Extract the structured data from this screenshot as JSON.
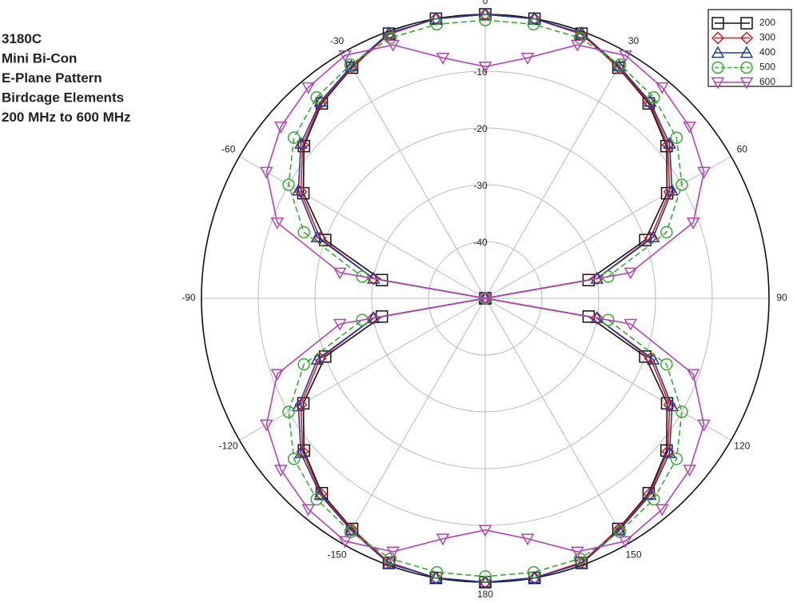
{
  "chart_data": {
    "type": "polar",
    "title_lines": [
      "3180C",
      "Mini Bi-Con",
      "E-Plane Pattern",
      "Birdcage Elements",
      "200 MHz to 600 MHz"
    ],
    "x": [
      0,
      10,
      20,
      30,
      40,
      50,
      60,
      70,
      80,
      90,
      100,
      110,
      120,
      130,
      140,
      150,
      160,
      170,
      180,
      190,
      200,
      210,
      220,
      230,
      240,
      250,
      260,
      270,
      280,
      290,
      300,
      310,
      320,
      330,
      340,
      350
    ],
    "rlim": [
      -50,
      0
    ],
    "rticks": [
      -10,
      -20,
      -30,
      -40
    ],
    "angle_ticks": [
      0,
      30,
      60,
      90,
      120,
      150,
      180,
      -150,
      -120,
      -90,
      -60,
      -30
    ],
    "series": [
      {
        "name": "200",
        "color": "#111111",
        "marker": "square",
        "dash": false,
        "values": [
          0,
          0,
          -0.4,
          -3.1,
          -5.2,
          -8.3,
          -13,
          -20,
          -31.5,
          -50,
          -31.5,
          -20,
          -13,
          -8.3,
          -5.2,
          -3.1,
          -0.4,
          0,
          0,
          0,
          -0.4,
          -3.1,
          -5.2,
          -8.3,
          -13,
          -20,
          -31.5,
          -50,
          -31.5,
          -20,
          -13,
          -8.3,
          -5.2,
          -3.1,
          -0.4,
          0
        ]
      },
      {
        "name": "300",
        "color": "#e8141b",
        "marker": "diamond",
        "dash": false,
        "values": [
          0,
          0,
          -0.5,
          -3,
          -5,
          -8,
          -12.5,
          -19,
          -30,
          -50,
          -30,
          -19,
          -12.5,
          -8,
          -5,
          -3,
          -0.5,
          0,
          0,
          0,
          -0.5,
          -3,
          -5,
          -8,
          -12.5,
          -19,
          -30,
          -50,
          -30,
          -19,
          -12.5,
          -8,
          -5,
          -3,
          -0.5,
          0
        ]
      },
      {
        "name": "400",
        "color": "#1f3c9c",
        "marker": "triangle",
        "dash": false,
        "values": [
          0,
          0,
          -0.3,
          -2.8,
          -4.8,
          -7.6,
          -12,
          -18.5,
          -30,
          -50,
          -30,
          -18.5,
          -12,
          -7.6,
          -4.8,
          -2.8,
          -0.3,
          0,
          0,
          0,
          -0.3,
          -2.8,
          -4.8,
          -7.6,
          -12,
          -18.5,
          -30,
          -50,
          -30,
          -18.5,
          -12,
          -7.6,
          -4.8,
          -2.8,
          -0.3,
          0
        ]
      },
      {
        "name": "500",
        "color": "#3aa935",
        "marker": "circle",
        "dash": true,
        "values": [
          -1,
          -1,
          -1.2,
          -2.5,
          -3.8,
          -6,
          -10,
          -16,
          -28,
          -50,
          -28,
          -16,
          -10,
          -6,
          -3.8,
          -2.5,
          -1.2,
          -1,
          -1,
          -1,
          -1.2,
          -2.5,
          -3.8,
          -6,
          -10,
          -16,
          -28,
          -50,
          -28,
          -16,
          -10,
          -6,
          -3.8,
          -2.5,
          -1.2,
          -1
        ]
      },
      {
        "name": "600",
        "color": "#b444b4",
        "marker": "triangle-down",
        "dash": false,
        "values": [
          -9.2,
          -7,
          -2.5,
          -0.6,
          -1.5,
          -3,
          -5.5,
          -11,
          -24,
          -50,
          -24,
          -11,
          -5.5,
          -3,
          -1.5,
          -0.6,
          -2.5,
          -7,
          -9.2,
          -7,
          -2.5,
          -0.6,
          -1.5,
          -3,
          -5.5,
          -11,
          -24,
          -50,
          -24,
          -11,
          -5.5,
          -3,
          -1.5,
          -0.6,
          -2.5,
          -7
        ]
      }
    ]
  }
}
